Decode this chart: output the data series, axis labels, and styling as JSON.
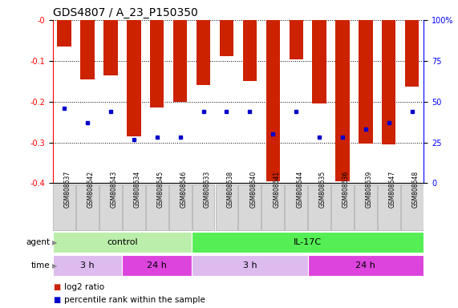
{
  "title": "GDS4807 / A_23_P150350",
  "samples": [
    "GSM808637",
    "GSM808642",
    "GSM808643",
    "GSM808634",
    "GSM808645",
    "GSM808646",
    "GSM808633",
    "GSM808638",
    "GSM808640",
    "GSM808641",
    "GSM808644",
    "GSM808635",
    "GSM808636",
    "GSM808639",
    "GSM808647",
    "GSM808648"
  ],
  "log2_ratio": [
    -0.065,
    -0.145,
    -0.135,
    -0.285,
    -0.215,
    -0.2,
    -0.16,
    -0.088,
    -0.15,
    -0.395,
    -0.097,
    -0.205,
    -0.395,
    -0.302,
    -0.305,
    -0.163
  ],
  "percentile_rank": [
    46,
    37,
    44,
    27,
    28,
    28,
    44,
    44,
    44,
    30,
    44,
    28,
    28,
    33,
    37,
    44
  ],
  "ylim_left": [
    -0.4,
    0.0
  ],
  "ylim_right": [
    0,
    100
  ],
  "bar_color": "#cc2200",
  "dot_color": "#0000cc",
  "agent_groups": [
    {
      "label": "control",
      "start": 0,
      "end": 6,
      "color": "#bbeeaa"
    },
    {
      "label": "IL-17C",
      "start": 6,
      "end": 16,
      "color": "#55ee55"
    }
  ],
  "time_groups": [
    {
      "label": "3 h",
      "start": 0,
      "end": 3,
      "color": "#ddbbee"
    },
    {
      "label": "24 h",
      "start": 3,
      "end": 6,
      "color": "#dd44dd"
    },
    {
      "label": "3 h",
      "start": 6,
      "end": 11,
      "color": "#ddbbee"
    },
    {
      "label": "24 h",
      "start": 11,
      "end": 16,
      "color": "#dd44dd"
    }
  ],
  "legend_items": [
    {
      "label": "log2 ratio",
      "color": "#cc2200"
    },
    {
      "label": "percentile rank within the sample",
      "color": "#0000cc"
    }
  ],
  "bg_color": "#ffffff",
  "grid_color": "#000000",
  "title_fontsize": 10,
  "tick_fontsize": 7,
  "label_fontsize": 8
}
